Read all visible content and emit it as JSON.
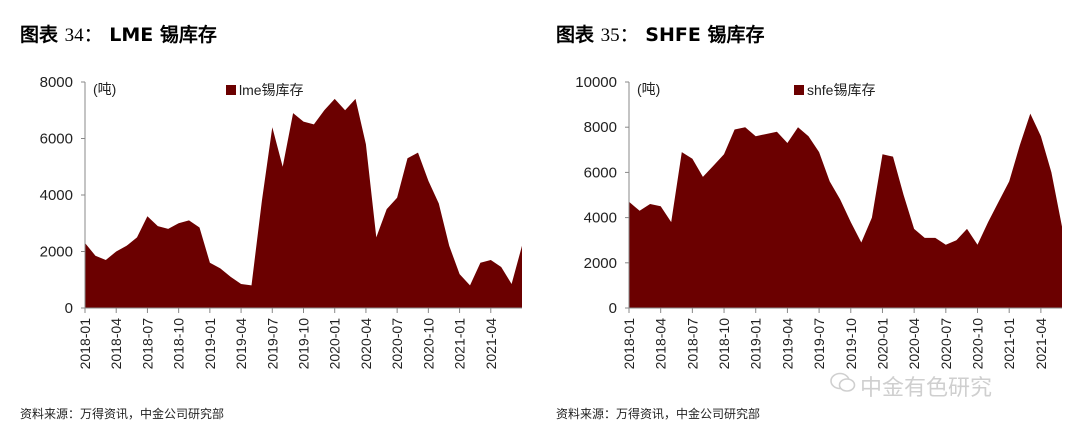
{
  "left": {
    "title_label": "图表",
    "title_num": "34：",
    "title_name": "LME 锡库存",
    "source": "资料来源：万得资讯，中金公司研究部"
  },
  "right": {
    "title_label": "图表",
    "title_num": "35：",
    "title_name": "SHFE 锡库存",
    "source": "资料来源：万得资讯，中金公司研究部"
  },
  "watermark": "中金有色研究",
  "chart_data": [
    {
      "type": "area",
      "title": "LME 锡库存",
      "unit_label": "(吨)",
      "series_name": "lme锡库存",
      "color": "#6b0000",
      "ylim": [
        0,
        8000
      ],
      "yticks": [
        0,
        2000,
        4000,
        6000,
        8000
      ],
      "xticks": [
        "2018-01",
        "2018-04",
        "2018-07",
        "2018-10",
        "2019-01",
        "2019-04",
        "2019-07",
        "2019-10",
        "2020-01",
        "2020-04",
        "2020-07",
        "2020-10",
        "2021-01",
        "2021-04"
      ],
      "x_start": "2018-01",
      "x_end": "2021-07",
      "points": [
        [
          "2018-01",
          2300
        ],
        [
          "2018-02",
          1850
        ],
        [
          "2018-03",
          1700
        ],
        [
          "2018-04",
          2000
        ],
        [
          "2018-05",
          2200
        ],
        [
          "2018-06",
          2500
        ],
        [
          "2018-07",
          3250
        ],
        [
          "2018-08",
          2900
        ],
        [
          "2018-09",
          2800
        ],
        [
          "2018-10",
          3000
        ],
        [
          "2018-11",
          3100
        ],
        [
          "2018-12",
          2850
        ],
        [
          "2019-01",
          1600
        ],
        [
          "2019-02",
          1400
        ],
        [
          "2019-03",
          1100
        ],
        [
          "2019-04",
          850
        ],
        [
          "2019-05",
          800
        ],
        [
          "2019-06",
          3800
        ],
        [
          "2019-07",
          6400
        ],
        [
          "2019-08",
          5000
        ],
        [
          "2019-09",
          6900
        ],
        [
          "2019-10",
          6600
        ],
        [
          "2019-11",
          6500
        ],
        [
          "2019-12",
          7000
        ],
        [
          "2020-01",
          7400
        ],
        [
          "2020-02",
          7000
        ],
        [
          "2020-03",
          7400
        ],
        [
          "2020-04",
          5800
        ],
        [
          "2020-05",
          2500
        ],
        [
          "2020-06",
          3500
        ],
        [
          "2020-07",
          3900
        ],
        [
          "2020-08",
          5300
        ],
        [
          "2020-09",
          5500
        ],
        [
          "2020-10",
          4500
        ],
        [
          "2020-11",
          3700
        ],
        [
          "2020-12",
          2200
        ],
        [
          "2021-01",
          1200
        ],
        [
          "2021-02",
          800
        ],
        [
          "2021-03",
          1600
        ],
        [
          "2021-04",
          1700
        ],
        [
          "2021-05",
          1450
        ],
        [
          "2021-06",
          850
        ],
        [
          "2021-07",
          2200
        ]
      ]
    },
    {
      "type": "area",
      "title": "SHFE 锡库存",
      "unit_label": "(吨)",
      "series_name": "shfe锡库存",
      "color": "#6b0000",
      "ylim": [
        0,
        10000
      ],
      "yticks": [
        0,
        2000,
        4000,
        6000,
        8000,
        10000
      ],
      "xticks": [
        "2018-01",
        "2018-04",
        "2018-07",
        "2018-10",
        "2019-01",
        "2019-04",
        "2019-07",
        "2019-10",
        "2020-01",
        "2020-04",
        "2020-07",
        "2020-10",
        "2021-01",
        "2021-04"
      ],
      "x_start": "2018-01",
      "x_end": "2021-06",
      "points": [
        [
          "2018-01",
          4700
        ],
        [
          "2018-02",
          4300
        ],
        [
          "2018-03",
          4600
        ],
        [
          "2018-04",
          4500
        ],
        [
          "2018-05",
          3800
        ],
        [
          "2018-06",
          6900
        ],
        [
          "2018-07",
          6600
        ],
        [
          "2018-08",
          5800
        ],
        [
          "2018-09",
          6300
        ],
        [
          "2018-10",
          6800
        ],
        [
          "2018-11",
          7900
        ],
        [
          "2018-12",
          8000
        ],
        [
          "2019-01",
          7600
        ],
        [
          "2019-02",
          7700
        ],
        [
          "2019-03",
          7800
        ],
        [
          "2019-04",
          7300
        ],
        [
          "2019-05",
          8000
        ],
        [
          "2019-06",
          7600
        ],
        [
          "2019-07",
          6900
        ],
        [
          "2019-08",
          5600
        ],
        [
          "2019-09",
          4800
        ],
        [
          "2019-10",
          3800
        ],
        [
          "2019-11",
          2900
        ],
        [
          "2019-12",
          4000
        ],
        [
          "2020-01",
          6800
        ],
        [
          "2020-02",
          6700
        ],
        [
          "2020-03",
          5000
        ],
        [
          "2020-04",
          3500
        ],
        [
          "2020-05",
          3100
        ],
        [
          "2020-06",
          3100
        ],
        [
          "2020-07",
          2800
        ],
        [
          "2020-08",
          3000
        ],
        [
          "2020-09",
          3500
        ],
        [
          "2020-10",
          2800
        ],
        [
          "2020-11",
          3800
        ],
        [
          "2020-12",
          4700
        ],
        [
          "2021-01",
          5600
        ],
        [
          "2021-02",
          7200
        ],
        [
          "2021-03",
          8600
        ],
        [
          "2021-04",
          7600
        ],
        [
          "2021-05",
          6000
        ],
        [
          "2021-06",
          3600
        ]
      ]
    }
  ]
}
